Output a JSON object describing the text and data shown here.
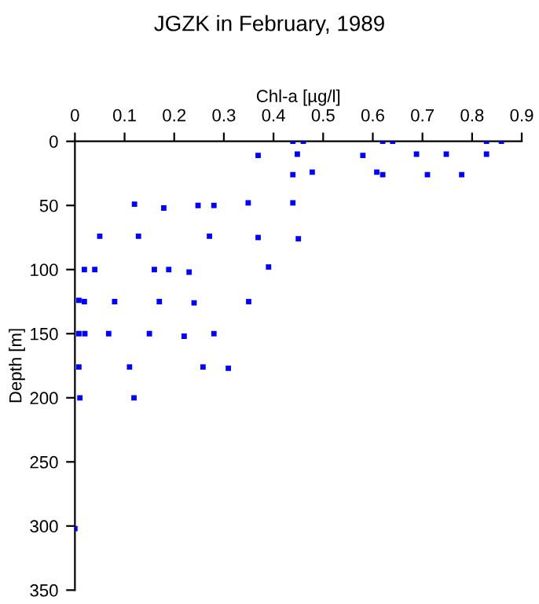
{
  "chart_data": {
    "type": "scatter",
    "title": "JGZK in February, 1989",
    "xlabel": "Chl-a [µg/l]",
    "ylabel": "Depth [m]",
    "x": [
      0.439,
      0.46,
      0.62,
      0.64,
      0.829,
      0.859,
      0.369,
      0.448,
      0.58,
      0.688,
      0.748,
      0.829,
      0.439,
      0.478,
      0.608,
      0.62,
      0.71,
      0.779,
      0.12,
      0.179,
      0.248,
      0.28,
      0.349,
      0.439,
      0.05,
      0.128,
      0.271,
      0.369,
      0.45,
      0.019,
      0.04,
      0.16,
      0.189,
      0.23,
      0.39,
      0.008,
      0.019,
      0.08,
      0.17,
      0.24,
      0.35,
      0.008,
      0.02,
      0.068,
      0.15,
      0.22,
      0.28,
      0.008,
      0.11,
      0.258,
      0.309,
      0.01,
      0.119,
      0.0
    ],
    "series": [
      {
        "color": "#0000ff",
        "values": [
          0,
          0,
          0,
          0,
          0,
          0,
          11,
          10,
          11,
          10,
          10,
          10,
          26,
          24,
          24,
          26,
          26,
          26,
          49,
          52,
          50,
          50,
          48,
          48,
          74,
          74,
          74,
          75,
          76,
          100,
          100,
          100,
          100,
          102,
          98,
          124,
          125,
          125,
          125,
          126,
          125,
          150,
          150,
          150,
          150,
          152,
          150,
          176,
          176,
          176,
          177,
          200,
          200,
          302
        ]
      }
    ],
    "marker": "square",
    "xlim": [
      0,
      0.9
    ],
    "xticks": [
      0,
      0.1,
      0.2,
      0.3,
      0.4,
      0.5,
      0.6,
      0.7,
      0.8,
      0.9
    ],
    "ylim": [
      350,
      0
    ],
    "yticks": [
      0,
      50,
      100,
      150,
      200,
      250,
      300,
      350
    ],
    "grid": false,
    "legend": false
  }
}
